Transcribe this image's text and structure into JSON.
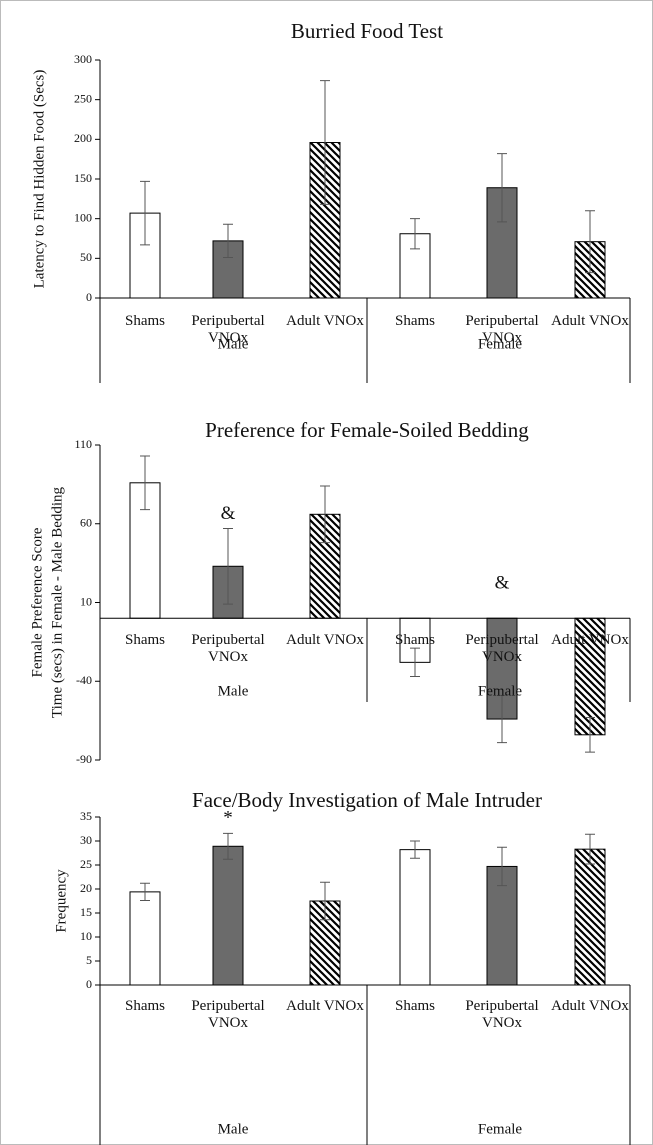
{
  "chart_data": [
    {
      "type": "bar",
      "title": "Burried Food Test",
      "ylabel": [
        "Latency to Find Hidden Food (Secs)"
      ],
      "categories": [
        "Shams",
        "Peripubertal VNOx",
        "Adult VNOx",
        "Shams",
        "Peripubertal VNOx",
        "Adult VNOx"
      ],
      "group_labels": [
        "Male",
        "Female"
      ],
      "values": [
        107,
        72,
        196,
        81,
        139,
        71
      ],
      "errors": [
        40,
        21,
        78,
        19,
        43,
        39
      ],
      "fills": [
        "#ffffff",
        "#6b6b6b",
        "hatch",
        "#ffffff",
        "#6b6b6b",
        "hatch"
      ],
      "ylim": [
        0,
        300
      ],
      "yticks": [
        0,
        50,
        100,
        150,
        200,
        250,
        300
      ]
    },
    {
      "type": "bar",
      "title": "Preference for Female-Soiled Bedding",
      "ylabel": [
        "Female Preference Score",
        "Time (secs) in Female - Male Bedding"
      ],
      "categories": [
        "Shams",
        "Peripubertal VNOx",
        "Adult VNOx",
        "Shams",
        "Peripubertal VNOx",
        "Adult VNOx"
      ],
      "group_labels": [
        "Male",
        "Female"
      ],
      "values": [
        86,
        33,
        66,
        -28,
        -64,
        -74
      ],
      "errors": [
        17,
        24,
        18,
        9,
        15,
        11
      ],
      "annotations": [
        null,
        "&",
        null,
        null,
        "&",
        null
      ],
      "fills": [
        "#ffffff",
        "#6b6b6b",
        "hatch",
        "#ffffff",
        "#6b6b6b",
        "hatch"
      ],
      "ylim": [
        -90,
        110
      ],
      "yticks": [
        -90,
        -40,
        10,
        60,
        110
      ]
    },
    {
      "type": "bar",
      "title": "Face/Body Investigation of Male Intruder",
      "ylabel": [
        "Frequency"
      ],
      "categories": [
        "Shams",
        "Peripubertal VNOx",
        "Adult VNOx",
        "Shams",
        "Peripubertal VNOx",
        "Adult VNOx"
      ],
      "group_labels": [
        "Male",
        "Female"
      ],
      "values": [
        19.4,
        28.9,
        17.5,
        28.2,
        24.7,
        28.3
      ],
      "errors": [
        1.8,
        2.7,
        3.9,
        1.8,
        4.0,
        3.1
      ],
      "annotations": [
        null,
        "*",
        null,
        null,
        null,
        null
      ],
      "fills": [
        "#ffffff",
        "#6b6b6b",
        "hatch",
        "#ffffff",
        "#6b6b6b",
        "hatch"
      ],
      "ylim": [
        0,
        35
      ],
      "yticks": [
        0,
        5,
        10,
        15,
        20,
        25,
        30,
        35
      ]
    }
  ]
}
